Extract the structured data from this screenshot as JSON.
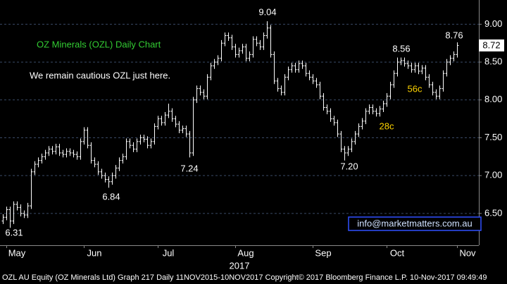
{
  "chart_data": {
    "type": "ohlc",
    "title": "OZ Minerals (OZL) Daily Chart",
    "subtitle": "We remain cautious OZL just here.",
    "xlabel": "2017",
    "footer": "OZL AU Equity (OZ Minerals Ltd) Graph 217  Daily 11NOV2015-10NOV2017 Copyright© 2017 Bloomberg Finance L.P.  10-Nov-2017 09:49:49",
    "source_box": "info@marketmatters.com.au",
    "last_price_label": "8.72",
    "annotations": [
      {
        "text": "9.04",
        "color": "#ffffff"
      },
      {
        "text": "8.56",
        "color": "#ffffff"
      },
      {
        "text": "8.76",
        "color": "#ffffff"
      },
      {
        "text": "7.24",
        "color": "#ffffff"
      },
      {
        "text": "7.20",
        "color": "#ffffff"
      },
      {
        "text": "6.84",
        "color": "#ffffff"
      },
      {
        "text": "6.31",
        "color": "#ffffff"
      },
      {
        "text": "28c",
        "color": "#ffd400"
      },
      {
        "text": "56c",
        "color": "#ffd400"
      }
    ],
    "color": "#ffffff",
    "grid": true,
    "ylim": [
      6.08,
      9.32
    ],
    "yticks": [
      {
        "value": 6.5,
        "label": "6.50"
      },
      {
        "value": 7,
        "label": "7.00"
      },
      {
        "value": 7.5,
        "label": "7.50"
      },
      {
        "value": 8,
        "label": "8.00"
      },
      {
        "value": 8.5,
        "label": "8.50"
      },
      {
        "value": 9,
        "label": "9.00"
      }
    ],
    "categories": [
      null,
      "May",
      null,
      null,
      null,
      null,
      null,
      null,
      null,
      null,
      null,
      null,
      null,
      null,
      null,
      null,
      null,
      null,
      null,
      null,
      null,
      null,
      null,
      "Jun",
      null,
      null,
      null,
      null,
      null,
      null,
      null,
      null,
      null,
      null,
      null,
      null,
      null,
      null,
      null,
      null,
      null,
      null,
      null,
      null,
      "Jul",
      null,
      null,
      null,
      null,
      null,
      null,
      null,
      null,
      null,
      null,
      null,
      null,
      null,
      null,
      null,
      null,
      null,
      null,
      null,
      null,
      null,
      "Aug",
      null,
      null,
      null,
      null,
      null,
      null,
      null,
      null,
      null,
      null,
      null,
      null,
      null,
      null,
      null,
      null,
      null,
      null,
      null,
      null,
      null,
      "Sep",
      null,
      null,
      null,
      null,
      null,
      null,
      null,
      null,
      null,
      null,
      null,
      null,
      null,
      null,
      null,
      null,
      null,
      null,
      null,
      null,
      "Oct",
      null,
      null,
      null,
      null,
      null,
      null,
      null,
      null,
      null,
      null,
      null,
      null,
      null,
      null,
      null,
      null,
      null,
      null,
      null,
      "Nov"
    ],
    "open": [
      6.4,
      6.45,
      6.55,
      6.4,
      6.62,
      6.58,
      6.5,
      6.48,
      6.6,
      7.05,
      7.15,
      7.2,
      7.25,
      7.3,
      7.35,
      7.32,
      7.38,
      7.3,
      7.28,
      7.32,
      7.3,
      7.28,
      7.25,
      7.45,
      7.6,
      7.4,
      7.2,
      7.15,
      7.05,
      7.0,
      6.95,
      6.92,
      7.0,
      7.1,
      7.2,
      7.25,
      7.45,
      7.4,
      7.35,
      7.45,
      7.5,
      7.48,
      7.4,
      7.45,
      7.65,
      7.75,
      7.7,
      7.8,
      7.85,
      7.75,
      7.68,
      7.6,
      7.62,
      7.55,
      7.3,
      8.0,
      8.15,
      8.1,
      8.05,
      8.3,
      8.45,
      8.5,
      8.55,
      8.75,
      8.85,
      8.82,
      8.7,
      8.6,
      8.65,
      8.7,
      8.55,
      8.6,
      8.8,
      8.75,
      8.7,
      8.85,
      8.95,
      8.6,
      8.25,
      8.15,
      8.1,
      8.3,
      8.4,
      8.45,
      8.4,
      8.48,
      8.45,
      8.35,
      8.3,
      8.25,
      8.2,
      8.05,
      7.9,
      7.85,
      7.75,
      7.7,
      7.55,
      7.35,
      7.3,
      7.35,
      7.45,
      7.55,
      7.65,
      7.72,
      7.85,
      7.9,
      7.85,
      7.82,
      7.88,
      7.95,
      8.05,
      8.2,
      8.35,
      8.5,
      8.52,
      8.48,
      8.45,
      8.4,
      8.45,
      8.38,
      8.42,
      8.3,
      8.2,
      8.1,
      8.05,
      8.15,
      8.35,
      8.5,
      8.55,
      8.6
    ],
    "high": [
      6.49,
      6.59,
      6.59,
      6.66,
      6.66,
      6.62,
      6.54,
      6.64,
      7.09,
      7.19,
      7.24,
      7.29,
      7.34,
      7.39,
      7.39,
      7.42,
      7.42,
      7.34,
      7.36,
      7.36,
      7.34,
      7.32,
      7.49,
      7.64,
      7.64,
      7.44,
      7.24,
      7.19,
      7.09,
      7.04,
      6.99,
      7.04,
      7.14,
      7.24,
      7.29,
      7.49,
      7.49,
      7.44,
      7.49,
      7.54,
      7.54,
      7.52,
      7.49,
      7.69,
      7.79,
      7.79,
      7.84,
      7.95,
      7.89,
      7.79,
      7.72,
      7.66,
      7.66,
      7.59,
      8.04,
      8.19,
      8.19,
      8.14,
      8.34,
      8.49,
      8.54,
      8.59,
      8.79,
      8.89,
      8.89,
      8.86,
      8.74,
      8.69,
      8.74,
      8.74,
      8.64,
      8.84,
      8.84,
      8.79,
      8.89,
      9.04,
      8.99,
      8.64,
      8.29,
      8.19,
      8.34,
      8.44,
      8.49,
      8.49,
      8.52,
      8.52,
      8.49,
      8.39,
      8.34,
      8.29,
      8.24,
      8.09,
      7.94,
      7.89,
      7.79,
      7.74,
      7.59,
      7.39,
      7.39,
      7.49,
      7.59,
      7.69,
      7.76,
      7.89,
      7.94,
      7.94,
      7.89,
      7.92,
      7.99,
      8.09,
      8.24,
      8.39,
      8.56,
      8.56,
      8.56,
      8.52,
      8.49,
      8.49,
      8.49,
      8.46,
      8.46,
      8.34,
      8.24,
      8.14,
      8.19,
      8.39,
      8.54,
      8.59,
      8.64,
      8.76
    ],
    "low": [
      6.36,
      6.41,
      6.31,
      6.36,
      6.54,
      6.46,
      6.44,
      6.44,
      6.56,
      7.01,
      7.11,
      7.16,
      7.21,
      7.26,
      7.28,
      7.28,
      7.26,
      7.24,
      7.24,
      7.26,
      7.24,
      7.21,
      7.21,
      7.41,
      7.36,
      7.16,
      7.11,
      7.01,
      6.96,
      6.91,
      6.84,
      6.88,
      6.96,
      7.06,
      7.16,
      7.21,
      7.36,
      7.31,
      7.31,
      7.41,
      7.44,
      7.36,
      7.36,
      7.41,
      7.61,
      7.66,
      7.66,
      7.76,
      7.71,
      7.64,
      7.56,
      7.56,
      7.51,
      7.24,
      7.26,
      7.96,
      8.06,
      8.01,
      8.01,
      8.26,
      8.41,
      8.46,
      8.51,
      8.71,
      8.78,
      8.66,
      8.56,
      8.56,
      8.61,
      8.51,
      8.51,
      8.56,
      8.71,
      8.66,
      8.66,
      8.81,
      8.56,
      8.21,
      8.11,
      8.06,
      8.06,
      8.26,
      8.36,
      8.36,
      8.36,
      8.41,
      8.31,
      8.26,
      8.21,
      8.16,
      8.01,
      7.86,
      7.81,
      7.71,
      7.66,
      7.51,
      7.31,
      7.2,
      7.26,
      7.31,
      7.41,
      7.51,
      7.61,
      7.68,
      7.81,
      7.81,
      7.78,
      7.78,
      7.84,
      7.91,
      8.01,
      8.16,
      8.31,
      8.46,
      8.44,
      8.41,
      8.36,
      8.36,
      8.34,
      8.34,
      8.26,
      8.16,
      8.06,
      8.01,
      8.01,
      8.11,
      8.31,
      8.46,
      8.51,
      8.56
    ],
    "close": [
      6.45,
      6.55,
      6.4,
      6.62,
      6.58,
      6.5,
      6.48,
      6.6,
      7.05,
      7.15,
      7.2,
      7.25,
      7.3,
      7.35,
      7.32,
      7.38,
      7.3,
      7.28,
      7.32,
      7.3,
      7.28,
      7.25,
      7.45,
      7.6,
      7.4,
      7.2,
      7.15,
      7.05,
      7.0,
      6.95,
      6.92,
      7.0,
      7.1,
      7.2,
      7.25,
      7.45,
      7.4,
      7.35,
      7.45,
      7.5,
      7.48,
      7.4,
      7.45,
      7.65,
      7.75,
      7.7,
      7.8,
      7.85,
      7.75,
      7.68,
      7.6,
      7.62,
      7.55,
      7.3,
      8.0,
      8.15,
      8.1,
      8.05,
      8.3,
      8.45,
      8.5,
      8.55,
      8.75,
      8.85,
      8.82,
      8.7,
      8.6,
      8.65,
      8.7,
      8.55,
      8.6,
      8.8,
      8.75,
      8.7,
      8.85,
      8.95,
      8.6,
      8.25,
      8.15,
      8.1,
      8.3,
      8.4,
      8.45,
      8.4,
      8.48,
      8.45,
      8.35,
      8.3,
      8.25,
      8.2,
      8.05,
      7.9,
      7.85,
      7.75,
      7.7,
      7.55,
      7.35,
      7.3,
      7.35,
      7.45,
      7.55,
      7.65,
      7.72,
      7.85,
      7.9,
      7.85,
      7.82,
      7.88,
      7.95,
      8.05,
      8.2,
      8.35,
      8.5,
      8.52,
      8.48,
      8.45,
      8.4,
      8.45,
      8.38,
      8.42,
      8.3,
      8.2,
      8.1,
      8.05,
      8.15,
      8.35,
      8.5,
      8.55,
      8.6,
      8.72
    ]
  }
}
